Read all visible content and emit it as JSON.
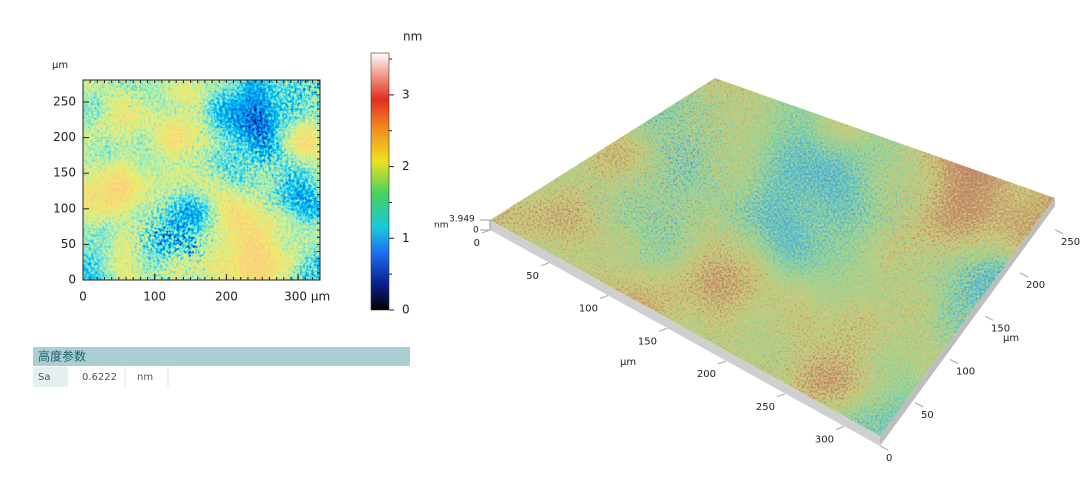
{
  "map_2d": {
    "y_unit": "µm",
    "xticks": [
      0,
      100,
      200,
      {
        "value": 300,
        "label": "300 µm"
      }
    ],
    "yticks": [
      0,
      50,
      100,
      150,
      200,
      250
    ]
  },
  "colorbar": {
    "unit": "nm",
    "ticks": [
      0,
      1,
      2,
      3
    ]
  },
  "table": {
    "header": "高度参数",
    "rows": [
      [
        "Sa",
        0.6222,
        "nm"
      ]
    ]
  },
  "view_3d": {
    "z_unit": "nm",
    "z_max": 3.949,
    "z_min": 0,
    "x_ticks": [
      0,
      50,
      100,
      150,
      200,
      250,
      300
    ],
    "x_unit": "µm",
    "y_ticks": [
      0,
      50,
      100,
      150,
      200,
      250
    ],
    "y_unit": "µm"
  }
}
